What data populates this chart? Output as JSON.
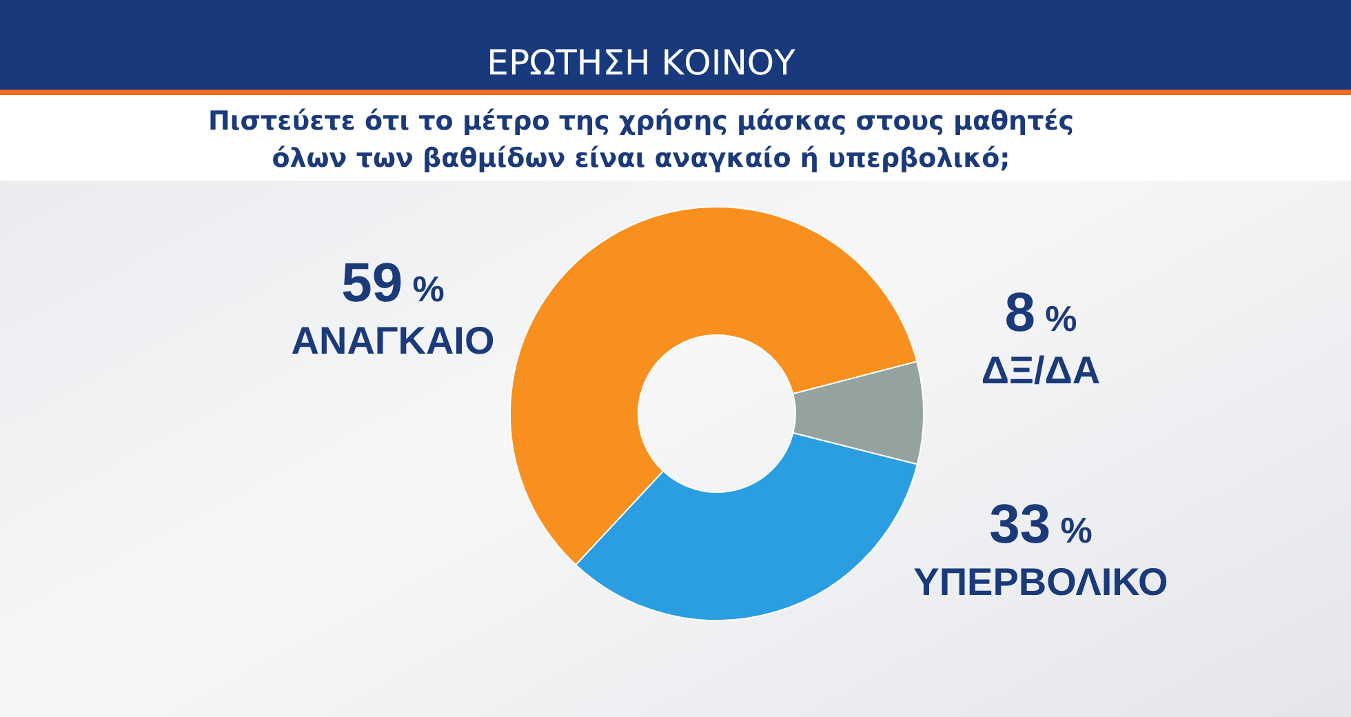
{
  "chart_data": {
    "type": "donut",
    "title": "ΕΡΩΤΗΣΗ ΚΟΙΝΟΥ",
    "subtitle": "Πιστεύετε ότι το μέτρο της χρήσης μάσκας στους μαθητές όλων των βαθμίδων είναι αναγκαίο ή υπερβολικό;",
    "categories": [
      "ΑΝΑΓΚΑΙΟ",
      "ΔΞ/ΔΑ",
      "ΥΠΕΡΒΟΛΙΚΟ"
    ],
    "values": [
      59,
      8,
      33
    ],
    "value_labels": [
      "59 %",
      "8 %",
      "33 %"
    ],
    "colors": [
      "#f7901e",
      "#94a39d",
      "#2a9ee0"
    ]
  }
}
